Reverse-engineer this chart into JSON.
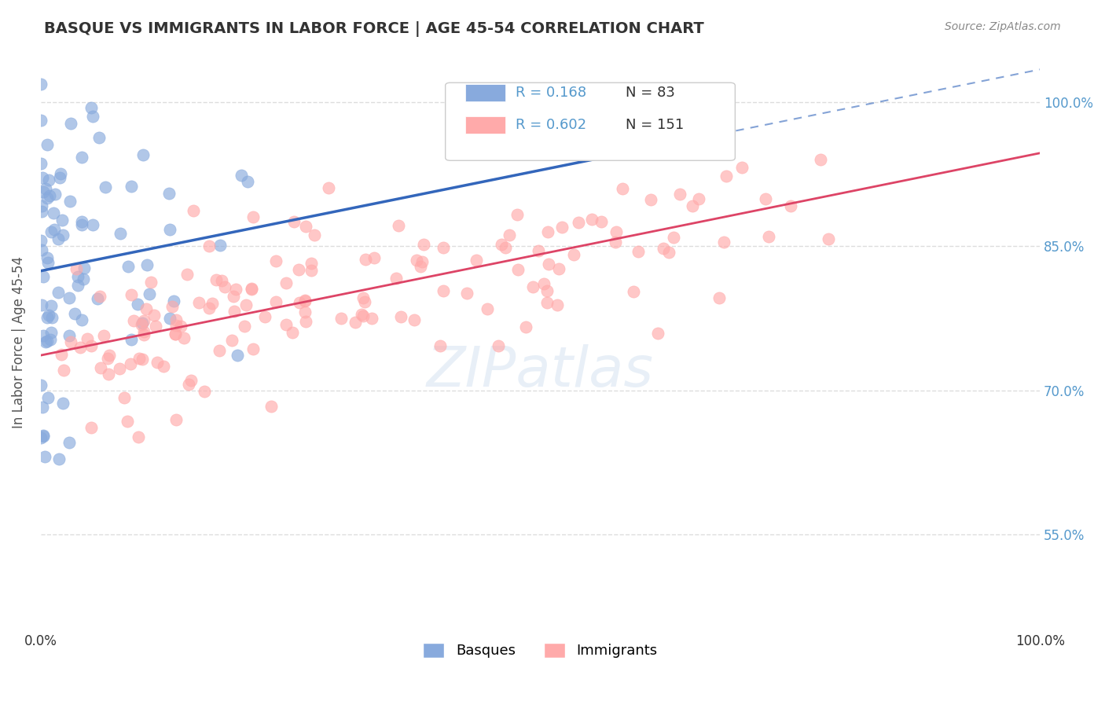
{
  "title": "BASQUE VS IMMIGRANTS IN LABOR FORCE | AGE 45-54 CORRELATION CHART",
  "source": "Source: ZipAtlas.com",
  "xlabel": "",
  "ylabel": "In Labor Force | Age 45-54",
  "xlim": [
    0.0,
    1.0
  ],
  "ylim": [
    0.45,
    1.05
  ],
  "x_tick_labels": [
    "0.0%",
    "100.0%"
  ],
  "y_tick_labels": [
    "55.0%",
    "70.0%",
    "85.0%",
    "100.0%"
  ],
  "y_tick_positions": [
    0.55,
    0.7,
    0.85,
    1.0
  ],
  "watermark": "ZIPatlas",
  "legend_entries": [
    {
      "label": "Basques",
      "color": "#6699CC",
      "R": 0.168,
      "N": 83
    },
    {
      "label": "Immigrants",
      "color": "#FF9999",
      "R": 0.602,
      "N": 151
    }
  ],
  "basque_color": "#5588CC",
  "immigrant_color": "#FF8888",
  "basque_scatter_color": "#88AADD",
  "immigrant_scatter_color": "#FFAAAA",
  "regression_basque_color": "#3366BB",
  "regression_immigrant_color": "#DD4466",
  "basque_R": 0.168,
  "basque_N": 83,
  "immigrant_R": 0.602,
  "immigrant_N": 151,
  "basque_seed": 42,
  "immigrant_seed": 99,
  "background_color": "#FFFFFF",
  "grid_color": "#DDDDDD",
  "title_color": "#333333",
  "axis_label_color": "#555555",
  "right_tick_color": "#5599CC"
}
